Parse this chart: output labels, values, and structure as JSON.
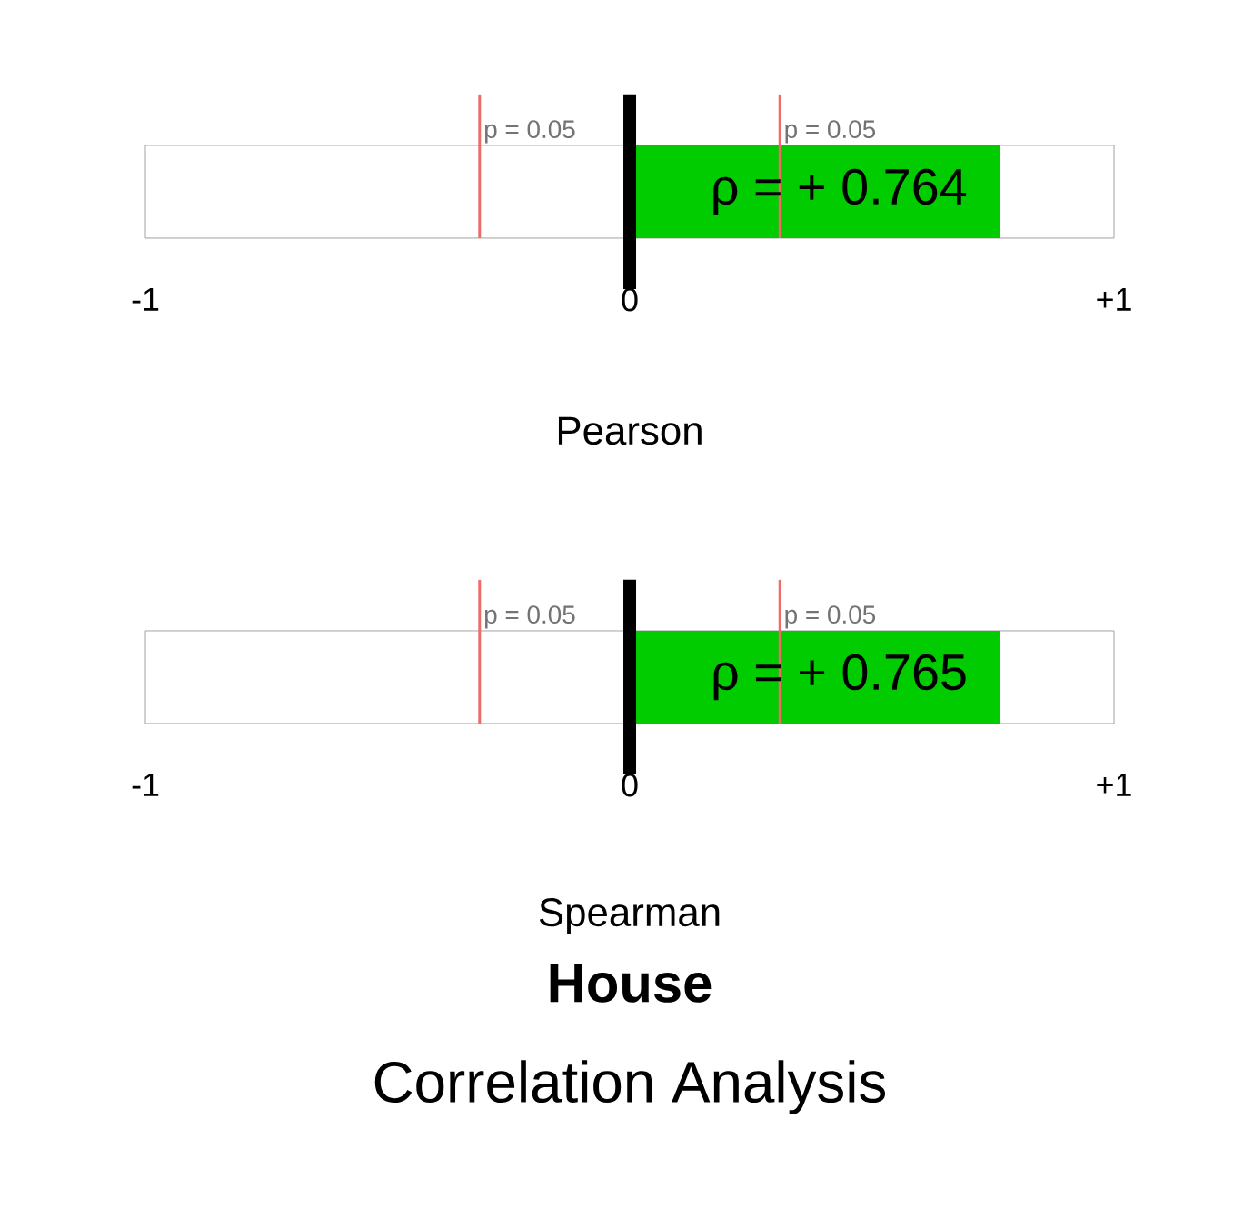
{
  "chart_data": [
    {
      "type": "bar",
      "orientation": "horizontal",
      "categories": [
        null
      ],
      "values": [
        0.764
      ],
      "value_labels": [
        "ρ = + 0.764"
      ],
      "color": "#00cc00",
      "xlim": [
        -1,
        1
      ],
      "xticks": [
        {
          "value": -1,
          "label": "-1"
        },
        {
          "value": 0,
          "label": "0"
        },
        {
          "value": 1,
          "label": "+1"
        }
      ],
      "xlabel": "Pearson",
      "annotations": [
        "p = 0.05",
        "p = 0.05"
      ],
      "ref_lines": [
        {
          "axis": "x",
          "value": -0.31,
          "color": "#f06a6a"
        },
        {
          "axis": "x",
          "value": 0.31,
          "color": "#f06a6a"
        },
        {
          "axis": "x",
          "value": 0,
          "color": "#000000"
        }
      ]
    },
    {
      "type": "bar",
      "orientation": "horizontal",
      "categories": [
        null
      ],
      "values": [
        0.765
      ],
      "value_labels": [
        "ρ = + 0.765"
      ],
      "color": "#00cc00",
      "xlim": [
        -1,
        1
      ],
      "xticks": [
        {
          "value": -1,
          "label": "-1"
        },
        {
          "value": 0,
          "label": "0"
        },
        {
          "value": 1,
          "label": "+1"
        }
      ],
      "xlabel": "Spearman",
      "title": "House",
      "subtitle": "Correlation Analysis",
      "annotations": [
        "p = 0.05",
        "p = 0.05"
      ],
      "ref_lines": [
        {
          "axis": "x",
          "value": -0.31,
          "color": "#f06a6a"
        },
        {
          "axis": "x",
          "value": 0.31,
          "color": "#f06a6a"
        },
        {
          "axis": "x",
          "value": 0,
          "color": "#000000"
        }
      ]
    }
  ]
}
